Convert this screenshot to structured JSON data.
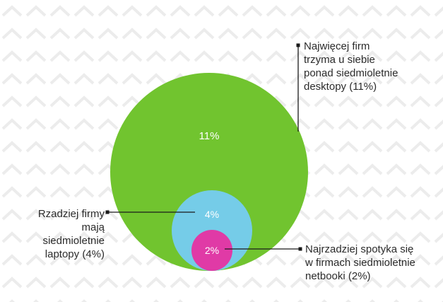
{
  "chart_data": {
    "type": "nested-bubble",
    "bubbles": [
      {
        "key": "desktops",
        "label": "11%",
        "value": 11,
        "color": "#71c42f"
      },
      {
        "key": "laptops",
        "label": "4%",
        "value": 4,
        "color": "#75cce8"
      },
      {
        "key": "netbooks",
        "label": "2%",
        "value": 2,
        "color": "#e03aa6"
      }
    ],
    "annotations": {
      "desktops": [
        "Najwięcej firm",
        "trzyma u siebie",
        "ponad siedmioletnie",
        "desktopy (11%)"
      ],
      "laptops": [
        "Rzadziej firmy",
        "mają siedmioletnie",
        "laptopy (4%)"
      ],
      "netbooks": [
        "Najrzadziej spotyka się",
        "w firmach siedmioletnie",
        "netbooki (2%)"
      ]
    },
    "colors": {
      "leader_line": "#1a1a1a",
      "bubble_text": "#ffffff"
    }
  }
}
